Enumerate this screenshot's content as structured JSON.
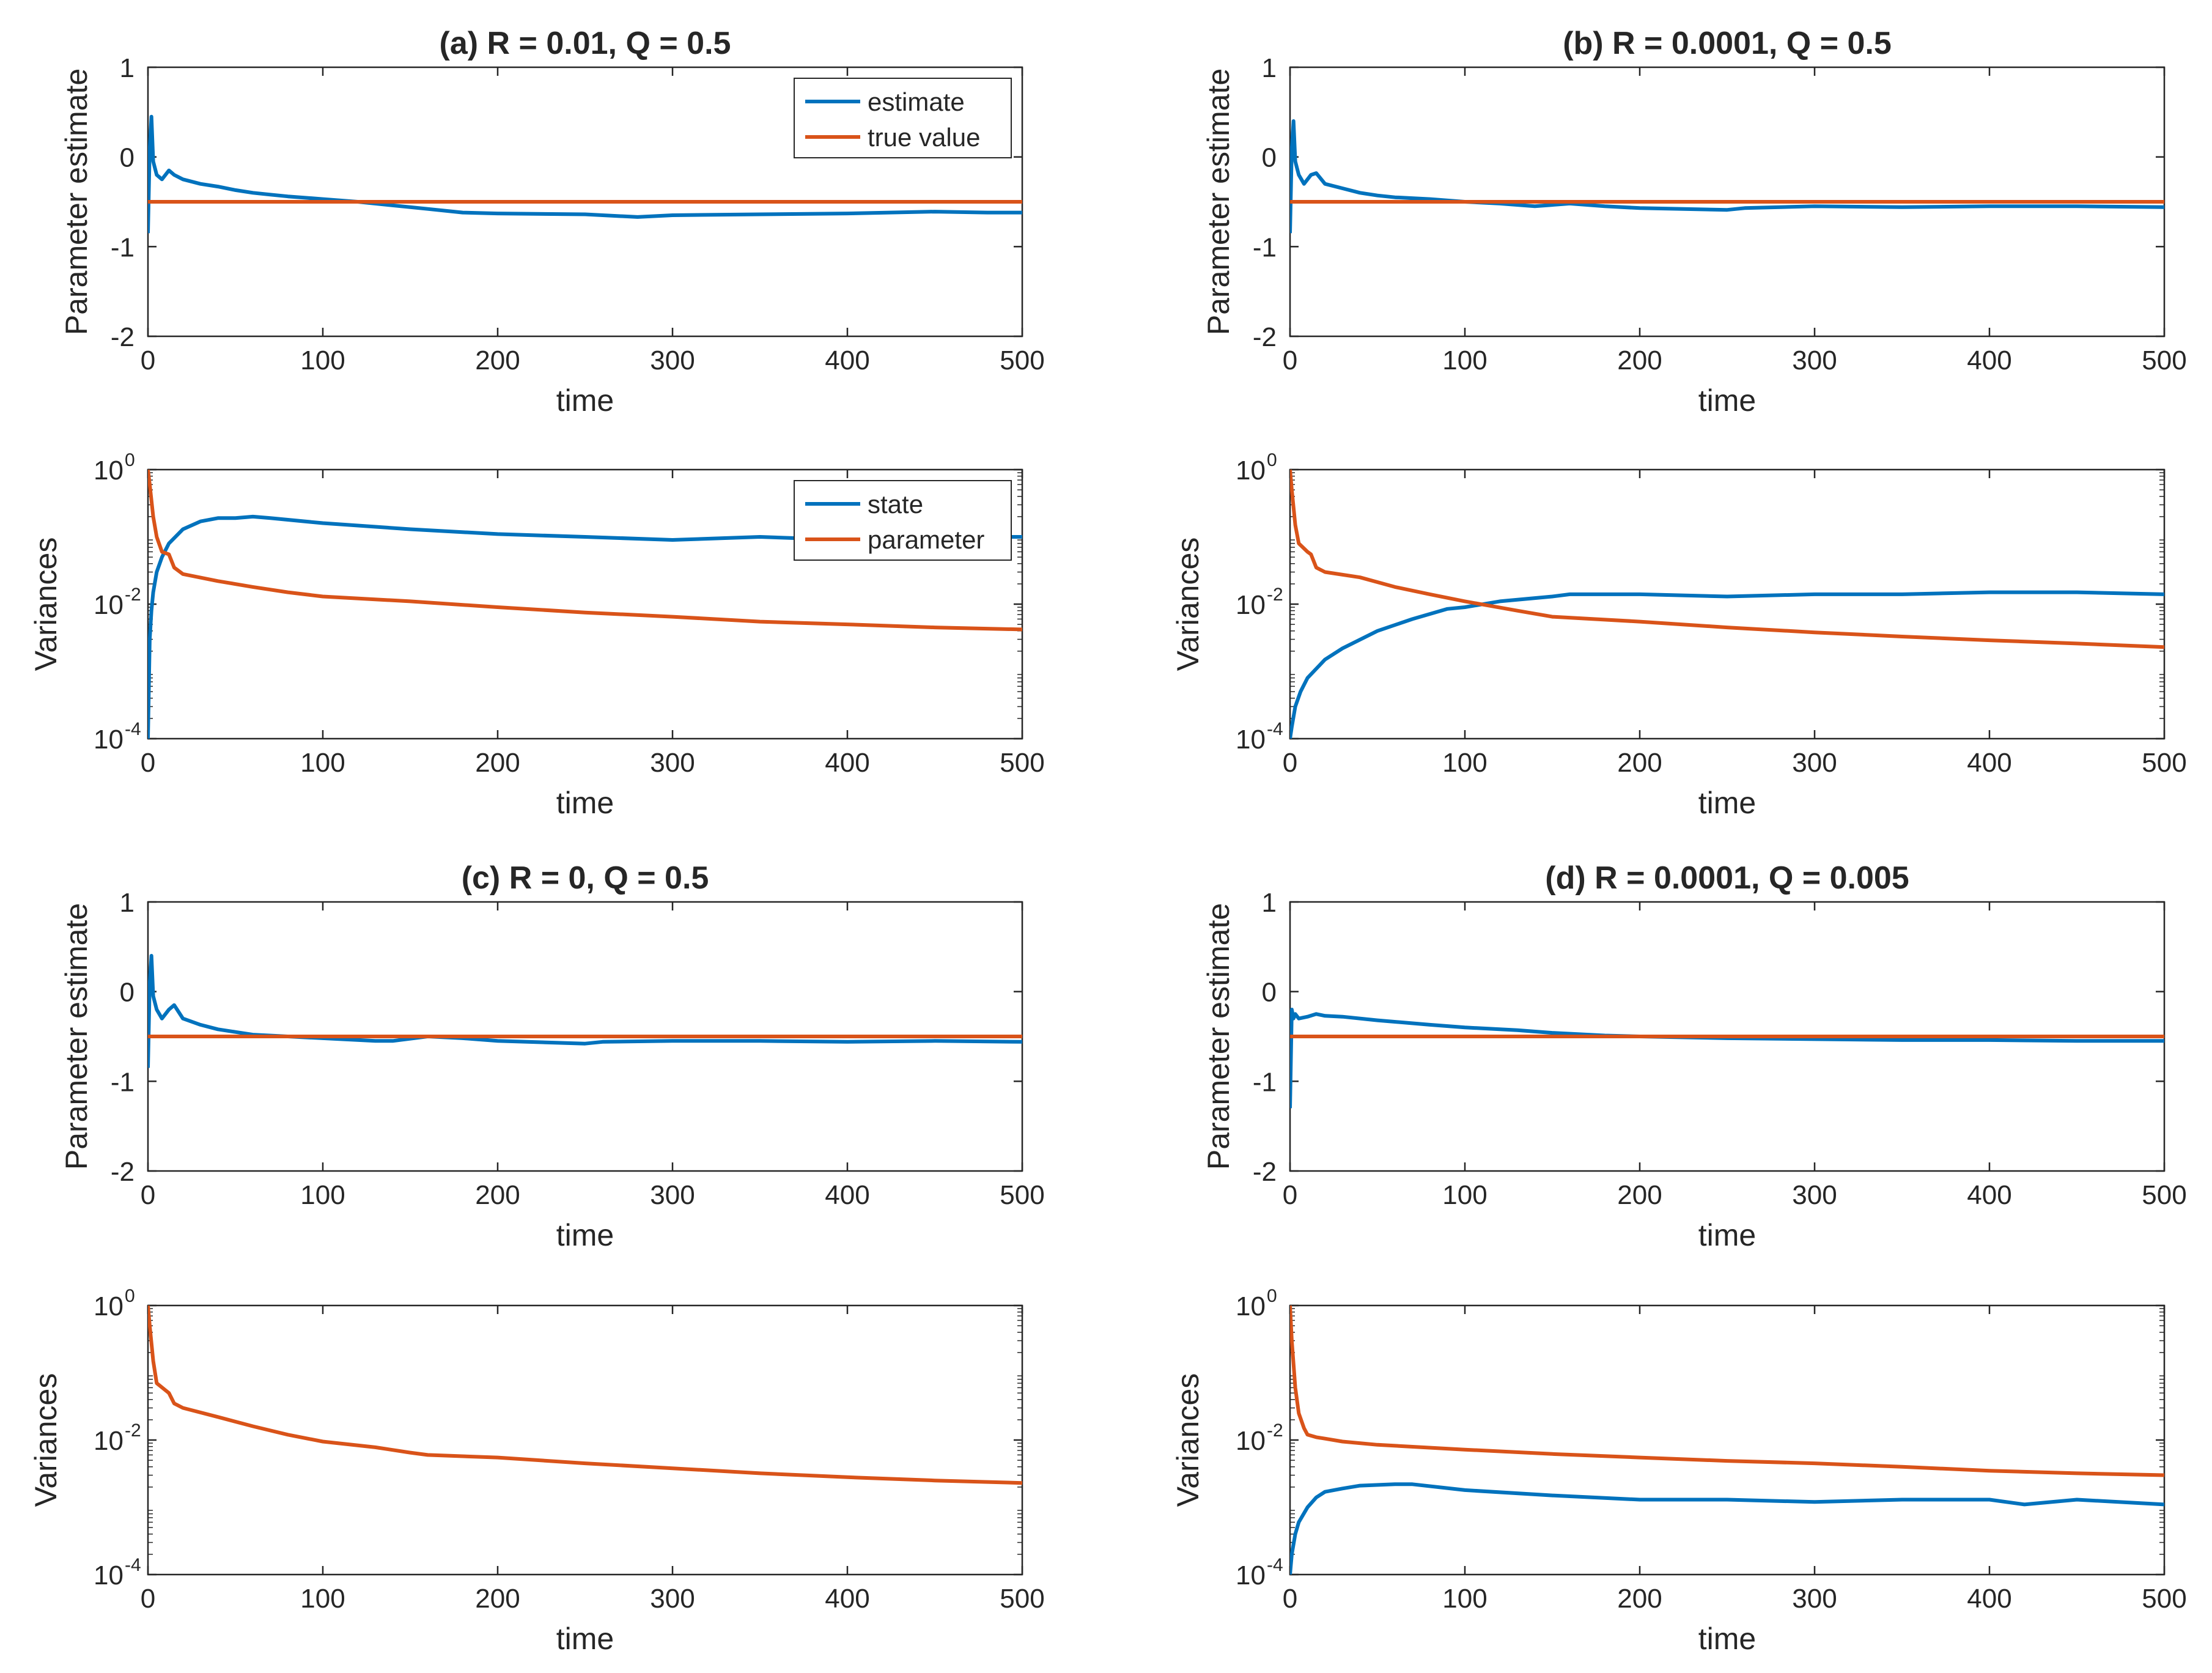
{
  "colors": {
    "blue": "#0072BD",
    "orange": "#D95319",
    "axis": "#262626"
  },
  "chart_data": [
    {
      "type": "line",
      "title": "(a) R = 0.01, Q = 0.5",
      "xlabel": "time",
      "ylabel": "Parameter estimate",
      "xlim": [
        0,
        500
      ],
      "ylim": [
        -2,
        1
      ],
      "xticks": [
        "0",
        "100",
        "200",
        "300",
        "400",
        "500"
      ],
      "yticks": [
        "-2",
        "-1",
        "0",
        "1"
      ],
      "legend": {
        "position": "top-right",
        "entries": [
          "estimate",
          "true value"
        ]
      },
      "series": [
        {
          "name": "estimate",
          "color": "#0072BD",
          "x": [
            0,
            1,
            2,
            3,
            5,
            8,
            12,
            15,
            20,
            30,
            40,
            50,
            60,
            70,
            80,
            100,
            120,
            140,
            160,
            180,
            200,
            250,
            280,
            300,
            350,
            400,
            450,
            480,
            500
          ],
          "y": [
            -0.85,
            0.1,
            0.45,
            -0.05,
            -0.2,
            -0.25,
            -0.15,
            -0.2,
            -0.25,
            -0.3,
            -0.33,
            -0.37,
            -0.4,
            -0.42,
            -0.44,
            -0.47,
            -0.5,
            -0.54,
            -0.58,
            -0.62,
            -0.63,
            -0.64,
            -0.67,
            -0.65,
            -0.64,
            -0.63,
            -0.61,
            -0.62,
            -0.62
          ]
        },
        {
          "name": "true value",
          "color": "#D95319",
          "x": [
            0,
            500
          ],
          "y": [
            -0.5,
            -0.5
          ]
        }
      ]
    },
    {
      "type": "line",
      "title": "",
      "xlabel": "time",
      "ylabel": "Variances",
      "yscale": "log",
      "xlim": [
        0,
        500
      ],
      "ylim": [
        0.0001,
        1
      ],
      "xticks": [
        "0",
        "100",
        "200",
        "300",
        "400",
        "500"
      ],
      "legend": {
        "position": "top-right",
        "entries": [
          "state",
          "parameter"
        ]
      },
      "series": [
        {
          "name": "state",
          "color": "#0072BD",
          "x": [
            0,
            1,
            2,
            3,
            5,
            8,
            12,
            20,
            30,
            40,
            50,
            60,
            70,
            100,
            150,
            200,
            250,
            300,
            350,
            400,
            450,
            500
          ],
          "y": [
            0.0001,
            0.003,
            0.008,
            0.015,
            0.03,
            0.05,
            0.08,
            0.13,
            0.17,
            0.19,
            0.19,
            0.2,
            0.19,
            0.16,
            0.13,
            0.11,
            0.1,
            0.09,
            0.1,
            0.09,
            0.1,
            0.1
          ]
        },
        {
          "name": "parameter",
          "color": "#D95319",
          "x": [
            0,
            1,
            3,
            5,
            8,
            12,
            15,
            20,
            40,
            60,
            80,
            100,
            150,
            200,
            250,
            300,
            350,
            400,
            450,
            500
          ],
          "y": [
            1,
            0.6,
            0.2,
            0.1,
            0.06,
            0.055,
            0.035,
            0.028,
            0.022,
            0.018,
            0.015,
            0.013,
            0.011,
            0.009,
            0.0075,
            0.0065,
            0.0055,
            0.005,
            0.0045,
            0.0042
          ]
        }
      ]
    },
    {
      "type": "line",
      "title": "(b) R = 0.0001, Q = 0.5",
      "xlabel": "time",
      "ylabel": "Parameter estimate",
      "xlim": [
        0,
        500
      ],
      "ylim": [
        -2,
        1
      ],
      "xticks": [
        "0",
        "100",
        "200",
        "300",
        "400",
        "500"
      ],
      "yticks": [
        "-2",
        "-1",
        "0",
        "1"
      ],
      "series": [
        {
          "name": "estimate",
          "color": "#0072BD",
          "x": [
            0,
            1,
            2,
            3,
            5,
            8,
            12,
            15,
            20,
            30,
            40,
            50,
            60,
            80,
            100,
            120,
            140,
            160,
            180,
            200,
            250,
            260,
            300,
            350,
            400,
            450,
            500
          ],
          "y": [
            -0.85,
            0.1,
            0.4,
            -0.05,
            -0.2,
            -0.3,
            -0.2,
            -0.18,
            -0.3,
            -0.35,
            -0.4,
            -0.43,
            -0.45,
            -0.47,
            -0.5,
            -0.52,
            -0.55,
            -0.52,
            -0.55,
            -0.57,
            -0.59,
            -0.57,
            -0.55,
            -0.56,
            -0.55,
            -0.55,
            -0.56
          ]
        },
        {
          "name": "true value",
          "color": "#D95319",
          "x": [
            0,
            500
          ],
          "y": [
            -0.5,
            -0.5
          ]
        }
      ]
    },
    {
      "type": "line",
      "title": "",
      "xlabel": "time",
      "ylabel": "Variances",
      "yscale": "log",
      "xlim": [
        0,
        500
      ],
      "ylim": [
        0.0001,
        1
      ],
      "xticks": [
        "0",
        "100",
        "200",
        "300",
        "400",
        "500"
      ],
      "series": [
        {
          "name": "state",
          "color": "#0072BD",
          "x": [
            0,
            1,
            3,
            6,
            10,
            20,
            30,
            50,
            70,
            90,
            100,
            120,
            150,
            160,
            200,
            250,
            300,
            350,
            400,
            450,
            500
          ],
          "y": [
            0.0001,
            0.00015,
            0.0003,
            0.0005,
            0.0008,
            0.0015,
            0.0022,
            0.004,
            0.006,
            0.0085,
            0.009,
            0.011,
            0.013,
            0.014,
            0.014,
            0.013,
            0.014,
            0.014,
            0.015,
            0.015,
            0.014
          ]
        },
        {
          "name": "parameter",
          "color": "#D95319",
          "x": [
            0,
            1,
            3,
            5,
            10,
            12,
            15,
            20,
            40,
            60,
            80,
            100,
            130,
            150,
            200,
            250,
            300,
            350,
            400,
            450,
            500
          ],
          "y": [
            1,
            0.5,
            0.15,
            0.08,
            0.06,
            0.055,
            0.035,
            0.03,
            0.025,
            0.018,
            0.014,
            0.011,
            0.008,
            0.0065,
            0.0055,
            0.0045,
            0.0038,
            0.0033,
            0.0029,
            0.0026,
            0.0023
          ]
        }
      ]
    },
    {
      "type": "line",
      "title": "(c) R = 0, Q = 0.5",
      "xlabel": "time",
      "ylabel": "Parameter estimate",
      "xlim": [
        0,
        500
      ],
      "ylim": [
        -2,
        1
      ],
      "xticks": [
        "0",
        "100",
        "200",
        "300",
        "400",
        "500"
      ],
      "yticks": [
        "-2",
        "-1",
        "0",
        "1"
      ],
      "series": [
        {
          "name": "estimate",
          "color": "#0072BD",
          "x": [
            0,
            1,
            2,
            3,
            5,
            8,
            12,
            15,
            20,
            30,
            40,
            50,
            60,
            80,
            100,
            130,
            140,
            160,
            180,
            200,
            250,
            260,
            300,
            350,
            400,
            450,
            500
          ],
          "y": [
            -0.85,
            0.1,
            0.4,
            -0.05,
            -0.2,
            -0.3,
            -0.2,
            -0.15,
            -0.3,
            -0.37,
            -0.42,
            -0.45,
            -0.48,
            -0.5,
            -0.52,
            -0.55,
            -0.55,
            -0.5,
            -0.52,
            -0.55,
            -0.58,
            -0.56,
            -0.55,
            -0.55,
            -0.56,
            -0.55,
            -0.56
          ]
        },
        {
          "name": "true value",
          "color": "#D95319",
          "x": [
            0,
            500
          ],
          "y": [
            -0.5,
            -0.5
          ]
        }
      ]
    },
    {
      "type": "line",
      "title": "",
      "xlabel": "time",
      "ylabel": "Variances",
      "yscale": "log",
      "xlim": [
        0,
        500
      ],
      "ylim": [
        0.0001,
        1
      ],
      "xticks": [
        "0",
        "100",
        "200",
        "300",
        "400",
        "500"
      ],
      "series": [
        {
          "name": "parameter",
          "color": "#D95319",
          "x": [
            0,
            1,
            3,
            5,
            10,
            12,
            15,
            20,
            40,
            60,
            80,
            100,
            130,
            150,
            160,
            200,
            250,
            300,
            350,
            400,
            450,
            500
          ],
          "y": [
            1,
            0.5,
            0.15,
            0.07,
            0.055,
            0.05,
            0.035,
            0.03,
            0.022,
            0.016,
            0.012,
            0.0095,
            0.0078,
            0.0065,
            0.006,
            0.0055,
            0.0045,
            0.0038,
            0.0032,
            0.0028,
            0.0025,
            0.0023
          ]
        }
      ]
    },
    {
      "type": "line",
      "title": "(d) R = 0.0001, Q = 0.005",
      "xlabel": "time",
      "ylabel": "Parameter estimate",
      "xlim": [
        0,
        500
      ],
      "ylim": [
        -2,
        1
      ],
      "xticks": [
        "0",
        "100",
        "200",
        "300",
        "400",
        "500"
      ],
      "yticks": [
        "-2",
        "-1",
        "0",
        "1"
      ],
      "series": [
        {
          "name": "estimate",
          "color": "#0072BD",
          "x": [
            0,
            1,
            2,
            3,
            5,
            10,
            15,
            20,
            30,
            50,
            80,
            100,
            130,
            150,
            180,
            200,
            250,
            300,
            350,
            400,
            450,
            500
          ],
          "y": [
            -1.3,
            -0.2,
            -0.3,
            -0.25,
            -0.3,
            -0.28,
            -0.25,
            -0.27,
            -0.28,
            -0.32,
            -0.37,
            -0.4,
            -0.43,
            -0.46,
            -0.49,
            -0.5,
            -0.52,
            -0.53,
            -0.54,
            -0.54,
            -0.55,
            -0.55
          ]
        },
        {
          "name": "true value",
          "color": "#D95319",
          "x": [
            0,
            500
          ],
          "y": [
            -0.5,
            -0.5
          ]
        }
      ]
    },
    {
      "type": "line",
      "title": "",
      "xlabel": "time",
      "ylabel": "Variances",
      "yscale": "log",
      "xlim": [
        0,
        500
      ],
      "ylim": [
        0.0001,
        1
      ],
      "xticks": [
        "0",
        "100",
        "200",
        "300",
        "400",
        "500"
      ],
      "series": [
        {
          "name": "state",
          "color": "#0072BD",
          "x": [
            0,
            1,
            3,
            5,
            10,
            15,
            20,
            30,
            40,
            60,
            70,
            100,
            150,
            200,
            250,
            300,
            350,
            400,
            420,
            450,
            500
          ],
          "y": [
            0.0001,
            0.0002,
            0.0004,
            0.0006,
            0.001,
            0.0014,
            0.0017,
            0.0019,
            0.0021,
            0.0022,
            0.0022,
            0.0018,
            0.0015,
            0.0013,
            0.0013,
            0.0012,
            0.0013,
            0.0013,
            0.0011,
            0.0013,
            0.0011
          ]
        },
        {
          "name": "parameter",
          "color": "#D95319",
          "x": [
            0,
            1,
            3,
            5,
            8,
            10,
            15,
            20,
            30,
            50,
            100,
            150,
            200,
            250,
            300,
            350,
            400,
            450,
            500
          ],
          "y": [
            1,
            0.3,
            0.06,
            0.025,
            0.015,
            0.012,
            0.011,
            0.0105,
            0.0095,
            0.0085,
            0.0072,
            0.0062,
            0.0055,
            0.0049,
            0.0045,
            0.004,
            0.0035,
            0.0032,
            0.003
          ]
        }
      ]
    }
  ]
}
